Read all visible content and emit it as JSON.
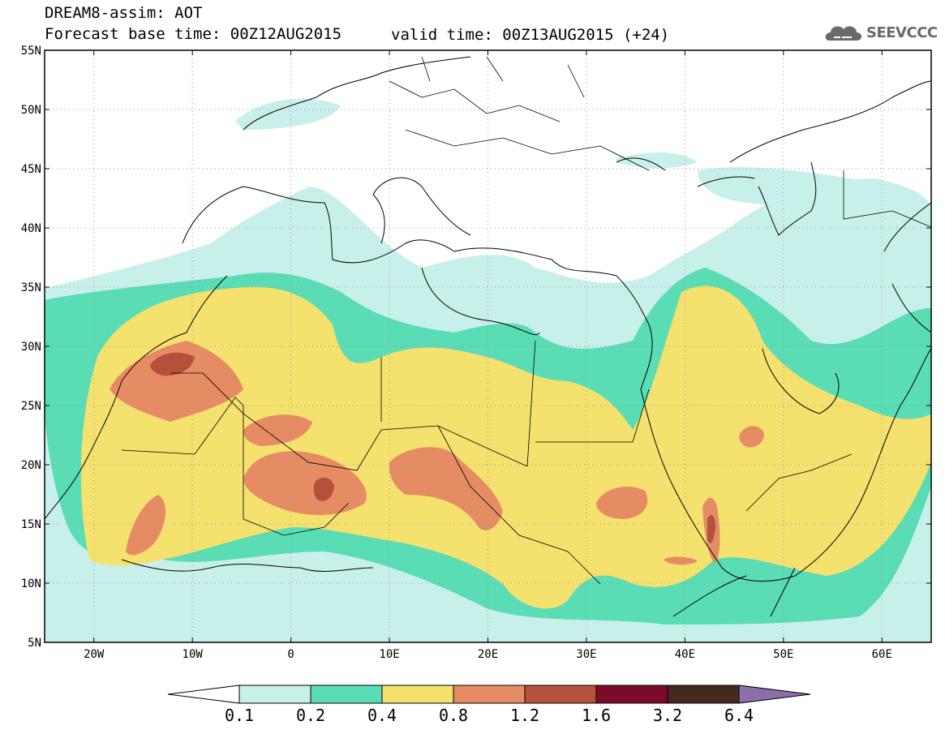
{
  "header": {
    "title": "DREAM8-assim: AOT",
    "forecast": "Forecast base time: 00Z12AUG2015",
    "valid": "valid time: 00Z13AUG2015 (+24)",
    "logo_text": "SEEVCCC"
  },
  "map": {
    "lon_range": [
      -25,
      65
    ],
    "lat_range": [
      5,
      55
    ],
    "lon_ticks": [
      "20W",
      "10W",
      "0",
      "10E",
      "20E",
      "30E",
      "40E",
      "50E",
      "60E"
    ],
    "lat_ticks": [
      "55N",
      "50N",
      "45N",
      "40N",
      "35N",
      "30N",
      "25N",
      "20N",
      "15N",
      "10N",
      "5N"
    ],
    "grid": "dotted"
  },
  "colorbar": {
    "labels": [
      "0.1",
      "0.2",
      "0.4",
      "0.8",
      "1.2",
      "1.6",
      "3.2",
      "6.4"
    ],
    "colors": [
      "#ffffff",
      "#c8f0eb",
      "#5adcb4",
      "#f5e16e",
      "#e68c64",
      "#b4503c",
      "#7d0a28",
      "#46281e",
      "#8c6eaa"
    ]
  }
}
